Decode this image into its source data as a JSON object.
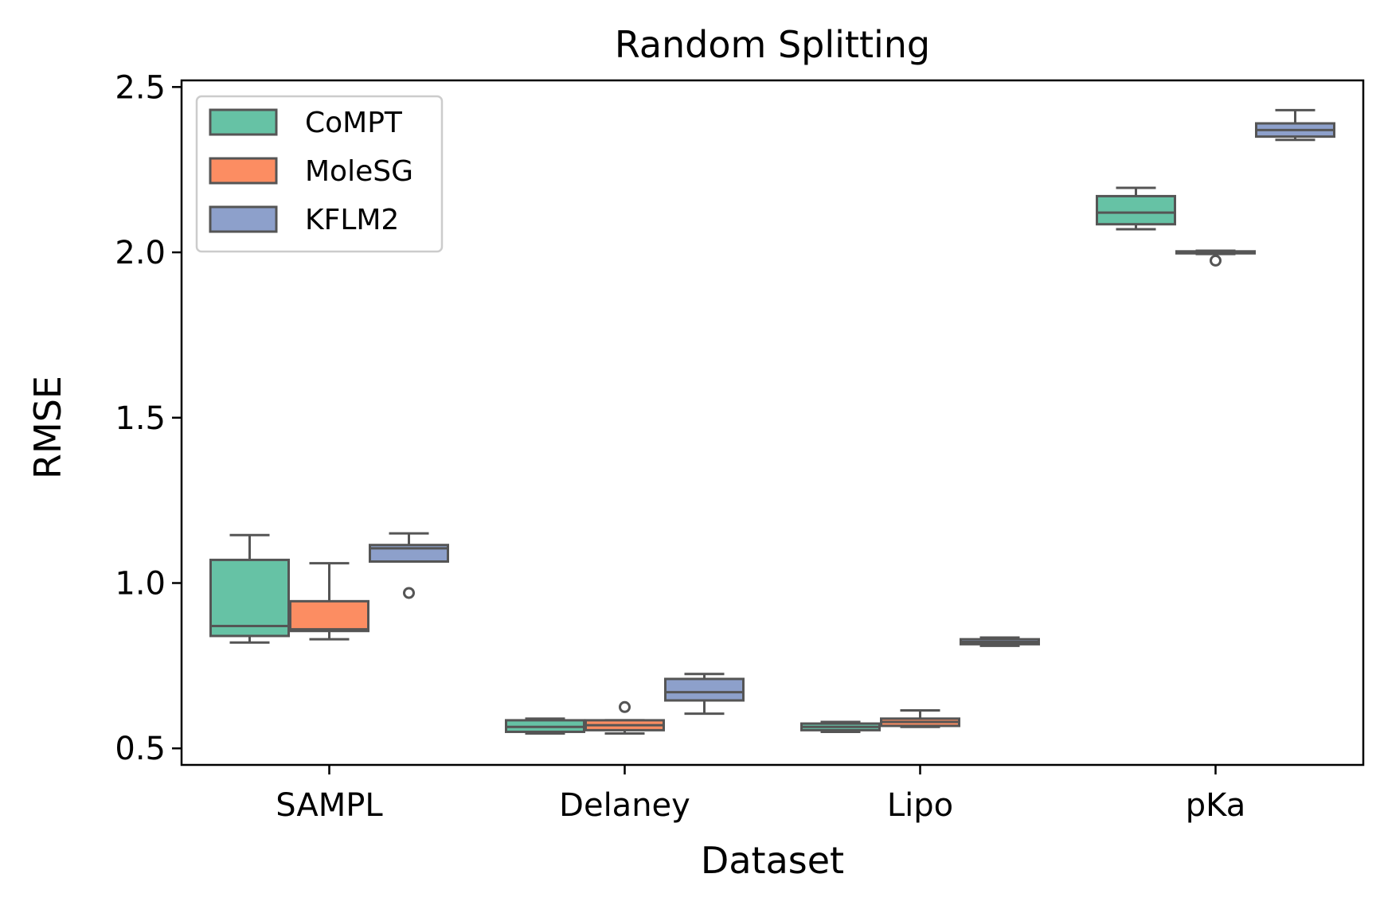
{
  "chart_data": {
    "type": "box",
    "title": "Random Splitting",
    "xlabel": "Dataset",
    "ylabel": "RMSE",
    "ylim": [
      0.45,
      2.52
    ],
    "yticks": [
      "0.5",
      "1.0",
      "1.5",
      "2.0",
      "2.5"
    ],
    "categories": [
      "SAMPL",
      "Delaney",
      "Lipo",
      "pKa"
    ],
    "legend_position": "top-left",
    "series": [
      {
        "name": "CoMPT",
        "color": "#66c2a5",
        "boxes": [
          {
            "whisker_low": 0.82,
            "q1": 0.84,
            "median": 0.87,
            "q3": 1.07,
            "whisker_high": 1.145,
            "outliers": []
          },
          {
            "whisker_low": 0.545,
            "q1": 0.55,
            "median": 0.565,
            "q3": 0.585,
            "whisker_high": 0.59,
            "outliers": []
          },
          {
            "whisker_low": 0.55,
            "q1": 0.555,
            "median": 0.565,
            "q3": 0.575,
            "whisker_high": 0.58,
            "outliers": []
          },
          {
            "whisker_low": 2.07,
            "q1": 2.085,
            "median": 2.12,
            "q3": 2.17,
            "whisker_high": 2.195,
            "outliers": []
          }
        ]
      },
      {
        "name": "MoleSG",
        "color": "#fc8d62",
        "boxes": [
          {
            "whisker_low": 0.83,
            "q1": 0.855,
            "median": 0.86,
            "q3": 0.945,
            "whisker_high": 1.06,
            "outliers": []
          },
          {
            "whisker_low": 0.545,
            "q1": 0.555,
            "median": 0.57,
            "q3": 0.585,
            "whisker_high": 0.585,
            "outliers": [
              0.625
            ]
          },
          {
            "whisker_low": 0.565,
            "q1": 0.568,
            "median": 0.58,
            "q3": 0.59,
            "whisker_high": 0.615,
            "outliers": []
          },
          {
            "whisker_low": 1.995,
            "q1": 1.997,
            "median": 2.0,
            "q3": 2.003,
            "whisker_high": 2.005,
            "outliers": [
              1.975
            ]
          }
        ]
      },
      {
        "name": "KFLM2",
        "color": "#8da0cb",
        "boxes": [
          {
            "whisker_low": 1.065,
            "q1": 1.065,
            "median": 1.105,
            "q3": 1.115,
            "whisker_high": 1.15,
            "outliers": [
              0.97
            ]
          },
          {
            "whisker_low": 0.605,
            "q1": 0.645,
            "median": 0.67,
            "q3": 0.71,
            "whisker_high": 0.725,
            "outliers": []
          },
          {
            "whisker_low": 0.81,
            "q1": 0.815,
            "median": 0.822,
            "q3": 0.83,
            "whisker_high": 0.835,
            "outliers": []
          },
          {
            "whisker_low": 2.34,
            "q1": 2.35,
            "median": 2.37,
            "q3": 2.39,
            "whisker_high": 2.43,
            "outliers": []
          }
        ]
      }
    ]
  }
}
